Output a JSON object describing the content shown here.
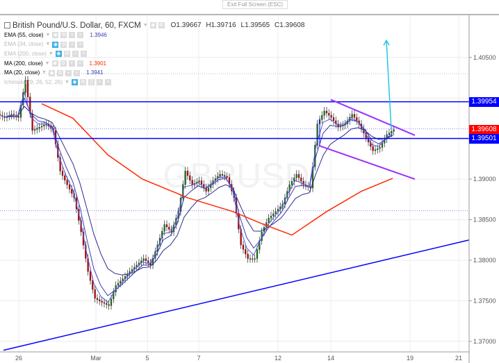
{
  "window": {
    "exit_label": "Exit Full Screen (ESC)"
  },
  "header": {
    "symbol": "British Pound/U.S. Dollar, 60, FXCM",
    "open": "O1.39667",
    "high": "H1.39716",
    "low": "L1.39565",
    "close": "C1.39608"
  },
  "indicators": [
    {
      "label": "EMA (55, close)",
      "value": "1.3946",
      "color": "#3c3cb4",
      "visible": true
    },
    {
      "label": "EMA (34, close)",
      "value": "",
      "visible": false
    },
    {
      "label": "EMA (200, close)",
      "value": "",
      "visible": false
    },
    {
      "label": "MA (200, close)",
      "value": "1.3901",
      "color": "#ff2a00",
      "visible": true
    },
    {
      "label": "MA (20, close)",
      "value": "1.3941",
      "color": "#3c3cb4",
      "visible": true
    },
    {
      "label": "Ichimoku (9, 26, 52, 26)",
      "value": "",
      "visible": false
    }
  ],
  "watermark": "GBPUSD",
  "chart_data": {
    "type": "candlestick",
    "ylim": [
      1.3687,
      1.4102
    ],
    "y_ticks": [
      "1.37000",
      "1.37500",
      "1.38000",
      "1.38500",
      "1.39000",
      "1.40500"
    ],
    "x_ticks": [
      {
        "label": "26",
        "bar": 2.2
      },
      {
        "label": "Mar",
        "bar": 13.3
      },
      {
        "label": "5",
        "bar": 20.7
      },
      {
        "label": "7",
        "bar": 28.1
      },
      {
        "label": "12",
        "bar": 39.5
      },
      {
        "label": "14",
        "bar": 47.1
      },
      {
        "label": "19",
        "bar": 58.5
      },
      {
        "label": "21",
        "bar": 65.5
      }
    ],
    "closes": [
      1.3976,
      1.398,
      1.3976,
      1.4022,
      1.396,
      1.3964,
      1.3968,
      1.396,
      1.391,
      1.3893,
      1.3877,
      1.3835,
      1.3786,
      1.3753,
      1.3748,
      1.3744,
      1.3769,
      1.3777,
      1.3786,
      1.3794,
      1.3802,
      1.3794,
      1.3819,
      1.3844,
      1.3835,
      1.386,
      1.391,
      1.3893,
      1.3898,
      1.3885,
      1.3898,
      1.3906,
      1.3902,
      1.3877,
      1.3819,
      1.3802,
      1.3802,
      1.3835,
      1.3852,
      1.386,
      1.3869,
      1.3893,
      1.3906,
      1.3893,
      1.3889,
      1.3968,
      1.3984,
      1.3976,
      1.3964,
      1.3968,
      1.398,
      1.3968,
      1.3951,
      1.3935,
      1.3939,
      1.3955,
      1.39608
    ],
    "ma200": [
      [
        5.5,
        1.3993
      ],
      [
        10,
        1.3975
      ],
      [
        15,
        1.393
      ],
      [
        20,
        1.39
      ],
      [
        26.5,
        1.3877
      ],
      [
        33,
        1.386
      ],
      [
        37.5,
        1.3844
      ],
      [
        41.5,
        1.3831
      ],
      [
        46.5,
        1.386
      ],
      [
        51.5,
        1.3885
      ],
      [
        56,
        1.3901
      ]
    ],
    "price_labels": [
      {
        "value": "1.39954",
        "color": "#0000ff"
      },
      {
        "value": "1.39608",
        "color": "#ff0000"
      },
      {
        "value": "1.39501",
        "color": "#0000ff"
      }
    ],
    "horizontal_lines": [
      {
        "value": 1.39954,
        "color": "#0000ff"
      },
      {
        "value": 1.39501,
        "color": "#0000ff"
      }
    ],
    "dotted_lines": [
      {
        "value": 1.403,
        "color": "#8fd28f"
      },
      {
        "value": 1.3962,
        "color": "#8080ff"
      },
      {
        "value": 1.3861,
        "color": "#8080ff"
      }
    ],
    "trend_line": {
      "from": [
        0,
        1.3689
      ],
      "to": [
        67,
        1.3825
      ],
      "color": "#0000ff"
    },
    "channel": {
      "upper": [
        [
          47.1,
          1.3998
        ],
        [
          59.2,
          1.3954
        ]
      ],
      "lower": [
        [
          45.5,
          1.3941
        ],
        [
          59.2,
          1.39
        ]
      ],
      "color": "#9b30ff"
    },
    "arrow": {
      "from": [
        55.8,
        1.3961
      ],
      "to": [
        55.1,
        1.4071
      ],
      "color": "#22c8e6"
    },
    "colors": {
      "up": "#1a7a1a",
      "down": "#cc0000",
      "grid": "#ececec"
    }
  }
}
